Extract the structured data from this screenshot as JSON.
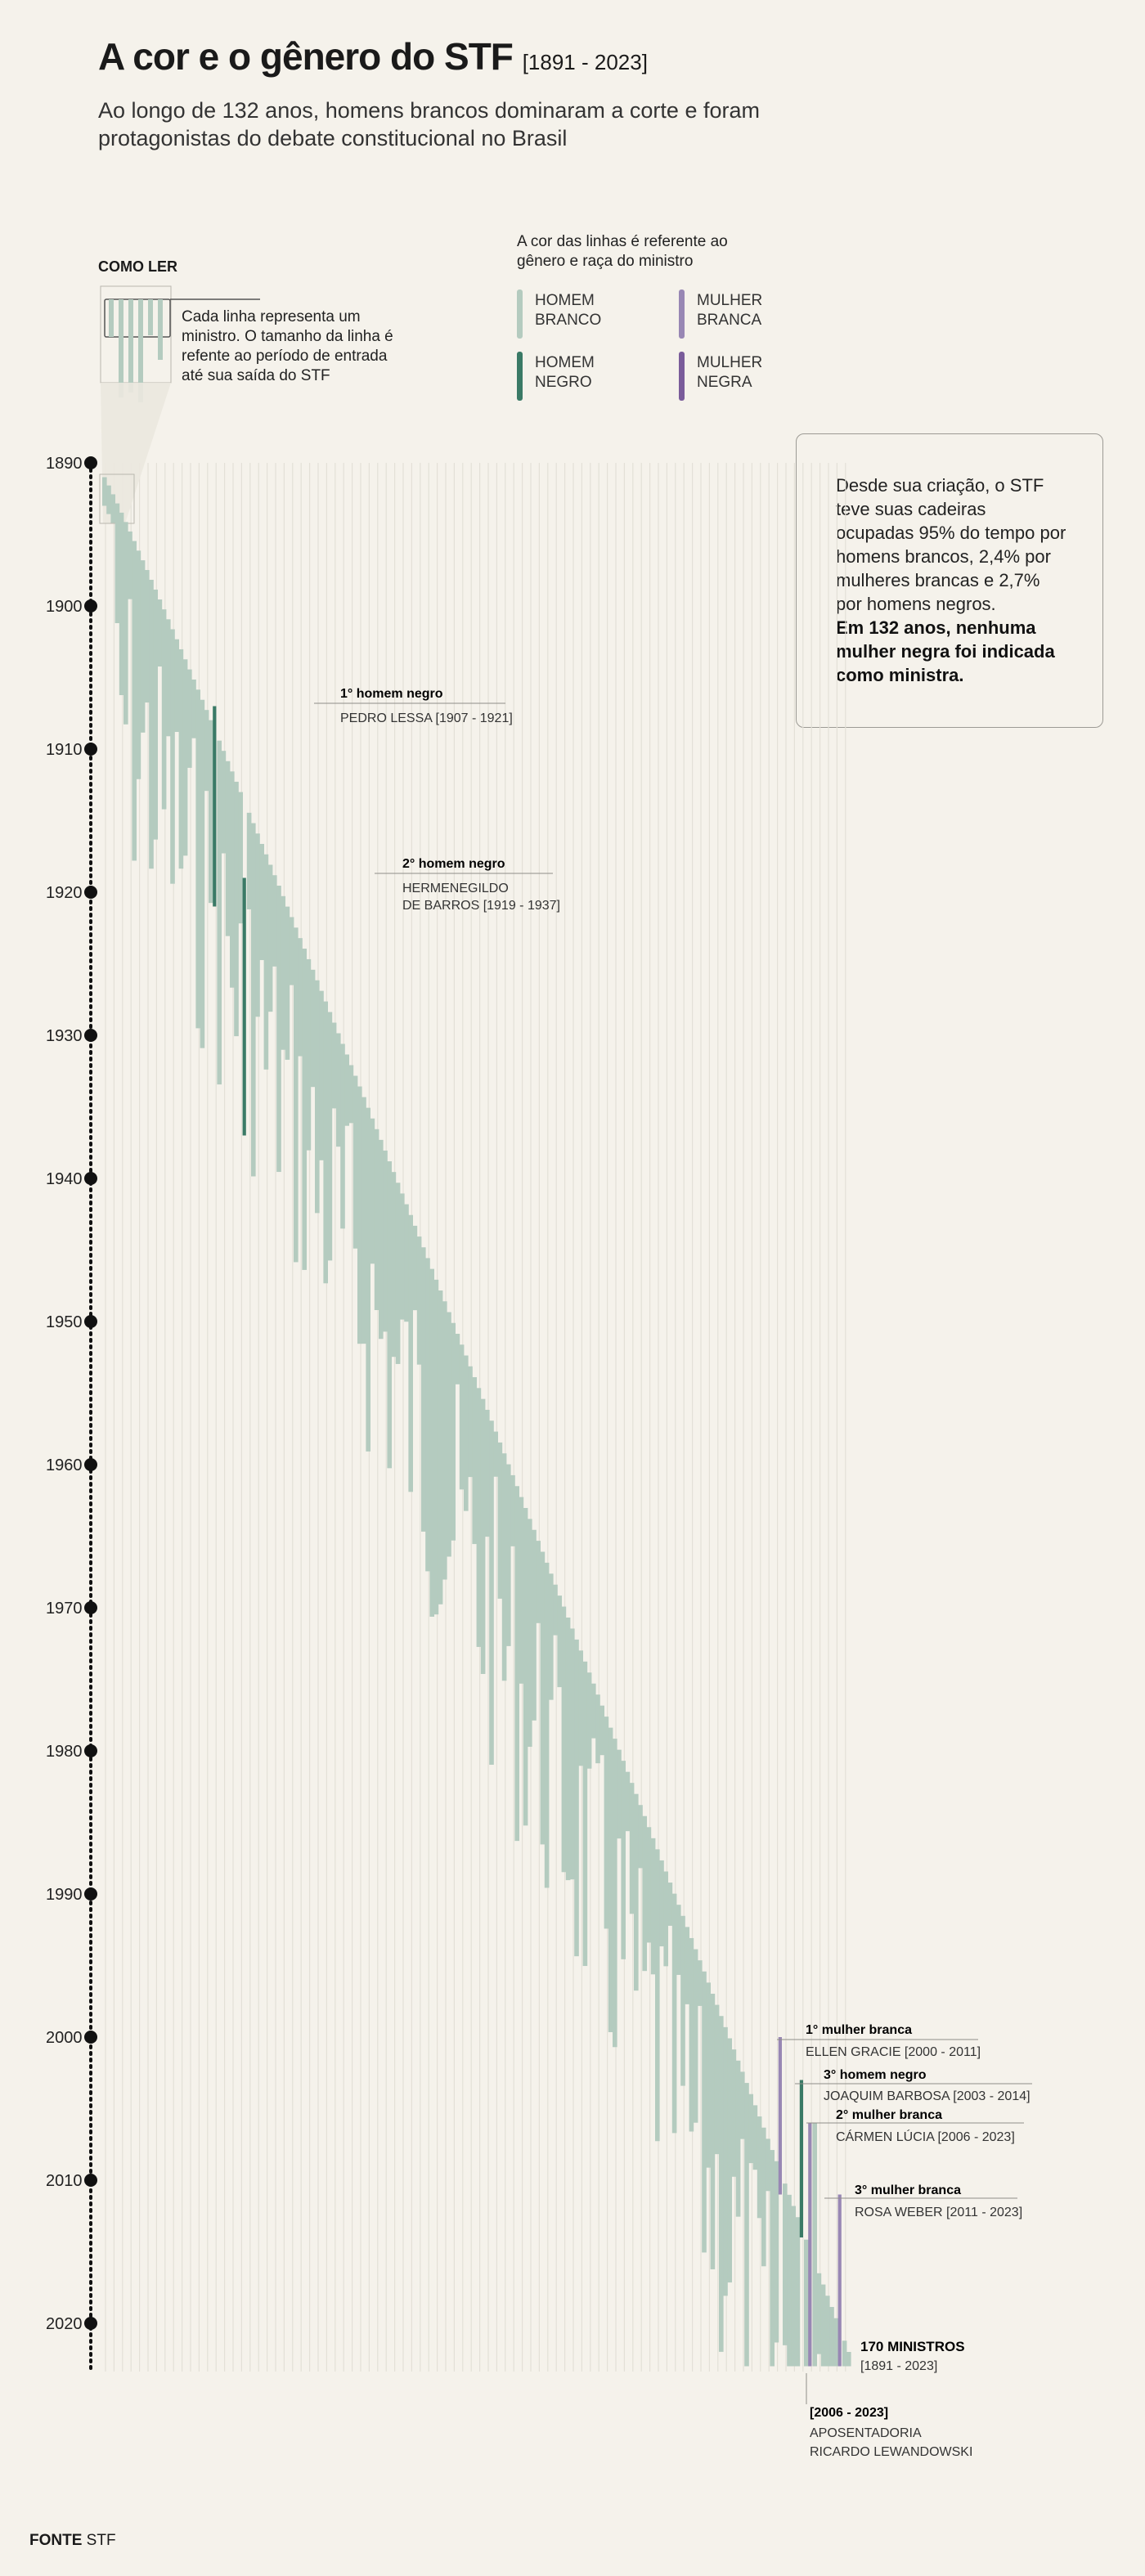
{
  "header": {
    "title": "A cor e o gênero do STF",
    "title_range": "[1891 - 2023]",
    "subtitle": "Ao longo de 132 anos, homens brancos dominaram a corte e foram protagonistas do debate constitucional no Brasil"
  },
  "how_to_read": {
    "heading": "COMO LER",
    "text": "Cada linha representa um ministro. O tamanho da linha é refente ao período de entrada até sua saída do STF"
  },
  "legend": {
    "heading": "A cor das linhas é referente ao gênero e raça do ministro",
    "items": [
      {
        "key": "wm",
        "line1": "HOMEM",
        "line2": "BRANCO",
        "color": "#b4cbbf"
      },
      {
        "key": "ww",
        "line1": "MULHER",
        "line2": "BRANCA",
        "color": "#9887b4"
      },
      {
        "key": "bm",
        "line1": "HOMEM",
        "line2": "NEGRO",
        "color": "#3a7a66"
      },
      {
        "key": "bw",
        "line1": "MULHER",
        "line2": "NEGRA",
        "color": "#7a5c9a"
      }
    ]
  },
  "callout": {
    "text": "Desde sua criação, o STF teve suas cadeiras ocupadas 95% do tempo por homens brancos, 2,4% por mulheres brancas e 2,7% por homens negros.",
    "bold": "Em 132 anos, nenhuma mulher negra foi indicada como ministra."
  },
  "annotations": [
    {
      "title": "1° homem negro",
      "detail": "PEDRO LESSA [1907 - 1921]"
    },
    {
      "title": "2° homem negro",
      "detail": "HERMENEGILDO",
      "detail2": "DE BARROS [1919 - 1937]"
    },
    {
      "title": "1° mulher branca",
      "detail": "ELLEN GRACIE [2000 - 2011]"
    },
    {
      "title": "3° homem negro",
      "detail": "JOAQUIM BARBOSA [2003 - 2014]"
    },
    {
      "title": "2° mulher branca",
      "detail": "CÁRMEN LÚCIA [2006 - 2023]"
    },
    {
      "title": "3° mulher branca",
      "detail": "ROSA WEBER [2011 - 2023]"
    },
    {
      "title": "170 MINISTROS",
      "detail": "[1891 - 2023]"
    },
    {
      "title": "[2006 - 2023]",
      "detail": "APOSENTADORIA",
      "detail2": "RICARDO LEWANDOWSKI"
    }
  ],
  "source": {
    "label": "FONTE",
    "value": "STF"
  },
  "chart_data": {
    "type": "bar",
    "orientation": "vertical-ranges",
    "description_of_axes": "each vertical line is one minister, spanning entry year to exit year",
    "year_ticks": [
      1890,
      1900,
      1910,
      1920,
      1930,
      1940,
      1950,
      1960,
      1970,
      1980,
      1990,
      2000,
      2010,
      2020
    ],
    "ylim": [
      1890,
      2023
    ],
    "total_ministers": 170,
    "highlighted": [
      {
        "name": "PEDRO LESSA",
        "group": "bm",
        "start": 1907,
        "end": 1921
      },
      {
        "name": "HERMENEGILDO DE BARROS",
        "group": "bm",
        "start": 1919,
        "end": 1937
      },
      {
        "name": "ELLEN GRACIE",
        "group": "ww",
        "start": 2000,
        "end": 2011
      },
      {
        "name": "JOAQUIM BARBOSA",
        "group": "bm",
        "start": 2003,
        "end": 2014
      },
      {
        "name": "CÁRMEN LÚCIA",
        "group": "ww",
        "start": 2006,
        "end": 2023
      },
      {
        "name": "ROSA WEBER",
        "group": "ww",
        "start": 2011,
        "end": 2023
      },
      {
        "name": "RICARDO LEWANDOWSKI",
        "group": "wm",
        "start": 2006,
        "end": 2023
      }
    ]
  }
}
